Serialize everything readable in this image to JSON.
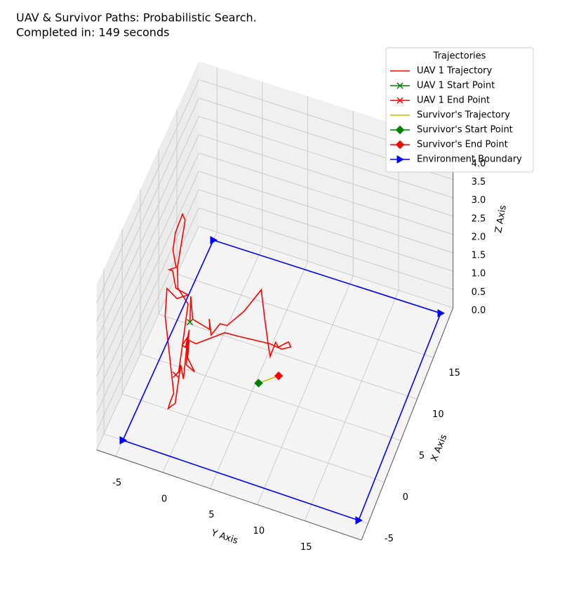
{
  "chart_data": {
    "type": "line3d",
    "title": "UAV & Survivor Paths: Probabilistic Search.",
    "subtitle": "Completed in: 149 seconds",
    "xlabel": "X Axis",
    "ylabel": "Y Axis",
    "zlabel": "Z Axis",
    "xlim": [
      -7,
      21
    ],
    "ylim": [
      -7,
      21
    ],
    "zlim": [
      0,
      4.5
    ],
    "xticks": [
      -5,
      0,
      5,
      10,
      15
    ],
    "yticks": [
      -5,
      0,
      5,
      10,
      15
    ],
    "zticks": [
      {
        "value": 0,
        "label": "0.0"
      },
      0.5,
      {
        "value": 1,
        "label": "1.0"
      },
      1.5,
      {
        "value": 2,
        "label": "2.0"
      },
      2.5,
      {
        "value": 3,
        "label": "3.0"
      },
      3.5,
      {
        "value": 4,
        "label": "4.0"
      }
    ],
    "grid": true,
    "legend_title": "Trajectories",
    "legend_position": "upper right",
    "series": [
      {
        "name": "UAV 1 Trajectory",
        "color": "#ff0000",
        "marker": "none",
        "x": [
          10.25,
          13.08,
          10.66,
          10.16,
          11.28,
          9.61,
          11.15,
          11.19,
          13.35,
          16.28,
          13.37,
          10.68,
          9.38,
          11.11,
          10.68,
          11.32,
          11.6,
          11.15,
          10.58,
          10.75,
          10.43,
          10.35,
          8.12,
          8.24,
          6.29,
          5.03,
          5.48,
          9.39,
          7.35,
          7.45,
          8.57,
          3.85,
          5.27,
          0.88,
          0.53,
          0.1,
          0.68,
          1.97,
          10.01,
          13.1,
          12.35,
          13.14,
          13.43,
          15.21,
          15.23,
          15.71,
          17.49,
          19.46,
          21.77,
          21.19,
          18.96,
          15.77,
          13.51,
          12.15,
          8.41,
          4.43,
          4.03
        ],
        "y": [
          -3.71,
          -4.73,
          -3.57,
          -1.52,
          -2.02,
          -1.16,
          -0.79,
          -0.06,
          0.97,
          1.71,
          3.2,
          4.6,
          5.31,
          5.25,
          5.72,
          6.21,
          6.48,
          6.88,
          6.12,
          4.79,
          1.35,
          0.04,
          -2.23,
          -3.01,
          -2.42,
          -1.19,
          -2.25,
          -3.45,
          -3.05,
          -3.46,
          -3.29,
          -1.93,
          -2.77,
          -1.68,
          -1.92,
          -2.12,
          -2.2,
          -2.25,
          -6.3,
          -7.33,
          -5.94,
          -5.04,
          -6.49,
          -7.55,
          -7.93,
          -7.37,
          -8.43,
          -8.96,
          -9.11,
          -8.58,
          -8.03,
          -7.25,
          -6.3,
          -4.66,
          -3.68,
          -2.67,
          -2.82
        ]
      },
      {
        "name": "UAV 1 Start Point",
        "color": "#008000",
        "marker": "x",
        "x": [
          10.25
        ],
        "y": [
          -3.71
        ]
      },
      {
        "name": "UAV 1 End Point",
        "color": "#ff0000",
        "marker": "x",
        "x": [
          4.03
        ],
        "y": [
          -2.82
        ]
      },
      {
        "name": "Survivor's Trajectory",
        "color": "#bfbf00",
        "marker": "none",
        "x": [
          6.1,
          7.6
        ],
        "y": [
          5.3,
          6.9
        ]
      },
      {
        "name": "Survivor's Start Point",
        "color": "#008000",
        "marker": "D",
        "x": [
          6.1
        ],
        "y": [
          5.3
        ]
      },
      {
        "name": "Survivor's End Point",
        "color": "#ff0000",
        "marker": "D",
        "x": [
          7.6
        ],
        "y": [
          6.9
        ]
      },
      {
        "name": "Environment Boundary",
        "color": "#0000ff",
        "marker": ">",
        "x": [
          -5,
          -5,
          20,
          20,
          -5
        ],
        "y": [
          -5,
          20,
          20,
          -5,
          -5
        ]
      }
    ]
  }
}
